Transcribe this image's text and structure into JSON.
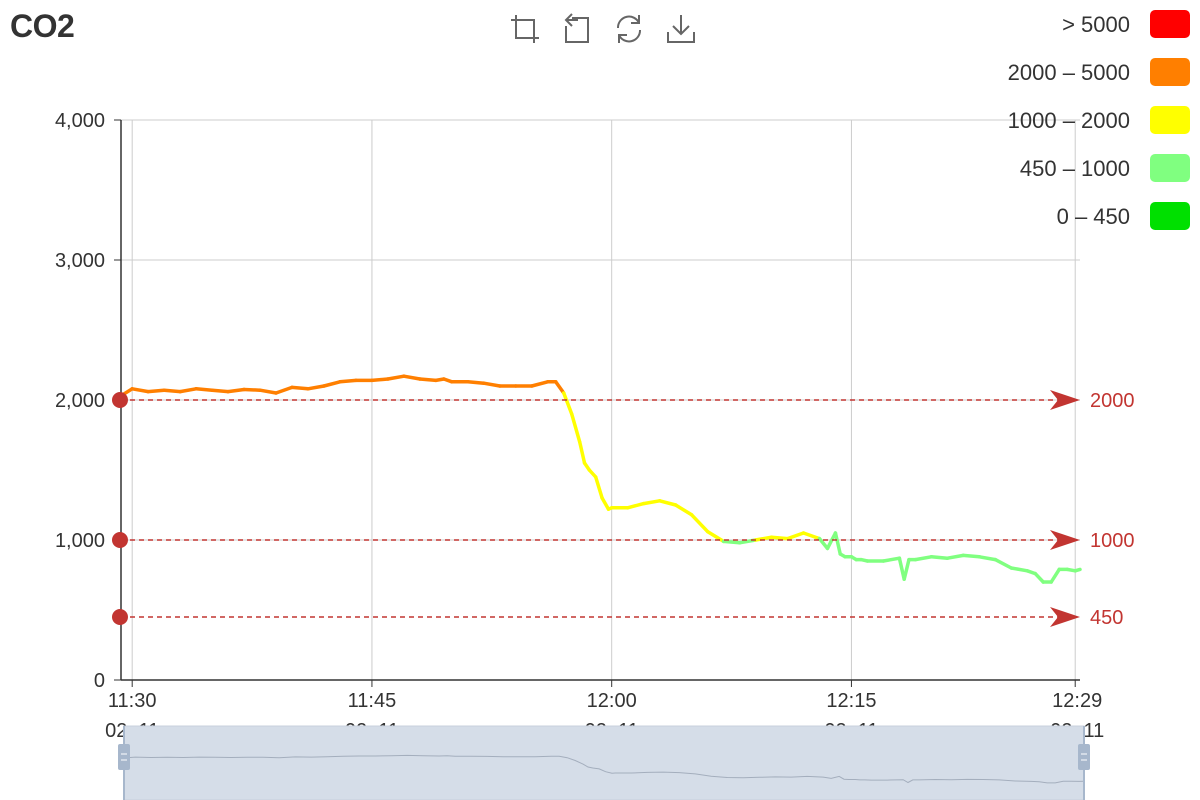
{
  "title": "CO2",
  "toolbox": [
    {
      "name": "zoom-icon",
      "title": "Zoom"
    },
    {
      "name": "zoom-reset-icon",
      "title": "Zoom Reset"
    },
    {
      "name": "restore-icon",
      "title": "Restore"
    },
    {
      "name": "download-icon",
      "title": "Save as Image"
    }
  ],
  "legend": [
    {
      "label": "> 5000",
      "color": "#ff0000"
    },
    {
      "label": "2000 – 5000",
      "color": "#ff7f00"
    },
    {
      "label": "1000 – 2000",
      "color": "#ffff00"
    },
    {
      "label": "450 – 1000",
      "color": "#80ff80"
    },
    {
      "label": "0 – 450",
      "color": "#00e000"
    }
  ],
  "colors": {
    "markline": "#c23531",
    "axis": "#333333",
    "grid": "#cccccc",
    "slider_fill": "#d5dde8",
    "slider_handle": "#a7b7cc"
  },
  "chart_data": {
    "type": "line",
    "title": "CO2",
    "xlabel": "",
    "ylabel": "",
    "ylim": [
      0,
      4000
    ],
    "yticks": [
      0,
      1000,
      2000,
      3000,
      4000
    ],
    "ytick_labels": [
      "0",
      "1,000",
      "2,000",
      "3,000",
      "4,000"
    ],
    "xticks": [
      {
        "minute": 0,
        "label_time": "11:30",
        "label_date": "02–11"
      },
      {
        "minute": 15,
        "label_time": "11:45",
        "label_date": "02–11"
      },
      {
        "minute": 30,
        "label_time": "12:00",
        "label_date": "02–11"
      },
      {
        "minute": 45,
        "label_time": "12:15",
        "label_date": "02–11"
      },
      {
        "minute": 59,
        "label_time": "12:29",
        "label_date": "02–11"
      }
    ],
    "x_range_minutes": [
      -0.7,
      59.3
    ],
    "visual_map": [
      {
        "min": 5000,
        "max": 1000000,
        "color": "#ff0000"
      },
      {
        "min": 2000,
        "max": 5000,
        "color": "#ff7f00"
      },
      {
        "min": 1000,
        "max": 2000,
        "color": "#ffff00"
      },
      {
        "min": 450,
        "max": 1000,
        "color": "#80ff80"
      },
      {
        "min": 0,
        "max": 450,
        "color": "#00e000"
      }
    ],
    "mark_lines": [
      {
        "value": 2000,
        "label": "2000"
      },
      {
        "value": 1000,
        "label": "1000"
      },
      {
        "value": 450,
        "label": "450"
      }
    ],
    "series": [
      {
        "x_minutes": [
          -0.7,
          0,
          1,
          2,
          3,
          4,
          5,
          6,
          7,
          8,
          9,
          10,
          11,
          12,
          13,
          14,
          15,
          16,
          17,
          18,
          19,
          19.5,
          20,
          21,
          22,
          23,
          24,
          25,
          26,
          26.5,
          27,
          27.5,
          28,
          28.3,
          28.6,
          29,
          29.4,
          29.8,
          30,
          31,
          32,
          33,
          34,
          35,
          36,
          37,
          38,
          39,
          40,
          41,
          42,
          43,
          43.5,
          44,
          44.3,
          44.6,
          45,
          45.3,
          45.6,
          46,
          47,
          48,
          48.3,
          48.6,
          49,
          50,
          51,
          52,
          53,
          54,
          55,
          56,
          56.5,
          57,
          57.5,
          58,
          58.5,
          59,
          59.3
        ],
        "values": [
          2030,
          2080,
          2060,
          2070,
          2060,
          2080,
          2070,
          2060,
          2075,
          2070,
          2050,
          2090,
          2080,
          2100,
          2130,
          2140,
          2140,
          2150,
          2170,
          2150,
          2140,
          2150,
          2130,
          2130,
          2120,
          2100,
          2100,
          2100,
          2130,
          2130,
          2050,
          1900,
          1700,
          1550,
          1500,
          1450,
          1300,
          1220,
          1230,
          1230,
          1260,
          1280,
          1250,
          1180,
          1060,
          990,
          980,
          1000,
          1020,
          1010,
          1050,
          1010,
          940,
          1050,
          900,
          880,
          880,
          860,
          860,
          850,
          850,
          870,
          720,
          860,
          860,
          880,
          870,
          890,
          880,
          860,
          800,
          780,
          760,
          700,
          700,
          790,
          790,
          780,
          790
        ]
      }
    ],
    "data_zoom": {
      "start": 0,
      "end": 100
    }
  }
}
